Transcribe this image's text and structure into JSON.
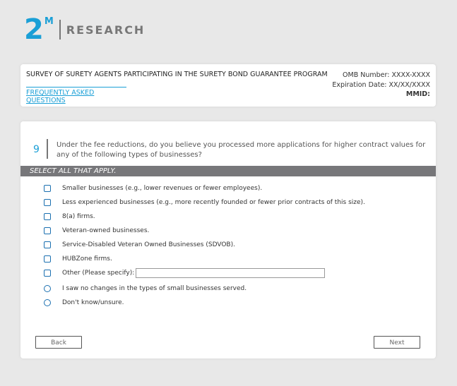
{
  "logo": {
    "mark": "2",
    "sup": "M",
    "text": "RESEARCH"
  },
  "header": {
    "title": "SURVEY OF SURETY AGENTS PARTICIPATING IN THE SURETY BOND GUARANTEE PROGRAM",
    "faq": "FREQUENTLY ASKED QUESTIONS",
    "omb": "OMB Number: XXXX-XXXX",
    "expiration": "Expiration Date: XX/XX/XXXX",
    "mmid": "MMID:"
  },
  "question": {
    "number": "9",
    "text": "Under the fee reductions, do you believe you processed more applications for higher contract values for any of the following types of businesses?",
    "instruction": "SELECT ALL THAT APPLY.",
    "options": [
      {
        "label": "Smaller businesses (e.g., lower revenues or fewer employees).",
        "type": "checkbox"
      },
      {
        "label": "Less experienced businesses (e.g., more recently founded or fewer prior contracts of this size).",
        "type": "checkbox"
      },
      {
        "label": "8(a) firms.",
        "type": "checkbox"
      },
      {
        "label": "Veteran-owned businesses.",
        "type": "checkbox"
      },
      {
        "label": "Service-Disabled Veteran Owned Businesses (SDVOB).",
        "type": "checkbox"
      },
      {
        "label": "HUBZone firms.",
        "type": "checkbox"
      },
      {
        "label": "Other (Please specify):",
        "type": "checkbox",
        "specify_value": ""
      },
      {
        "label": "I saw no changes in the types of small businesses served.",
        "type": "radio"
      },
      {
        "label": "Don't know/unsure.",
        "type": "radio"
      }
    ]
  },
  "nav": {
    "back": "Back",
    "next": "Next"
  }
}
